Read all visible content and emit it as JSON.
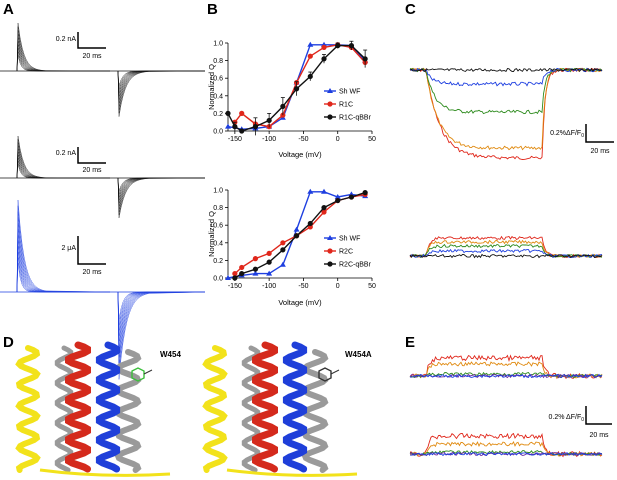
{
  "panels": {
    "a": "A",
    "b": "B",
    "c": "C",
    "d": "D",
    "e": "E"
  },
  "scale_bars": {
    "a1_current": "0.2 nA",
    "a1_time": "20 ms",
    "a2_current": "0.2 nA",
    "a2_time": "20 ms",
    "a3_current": "2 μA",
    "a3_time": "20 ms",
    "c_fluor": "0.2%ΔF/F",
    "c_fluor_sub": "0",
    "c_time": "20 ms",
    "e_fluor": "0.2% ΔF/F",
    "e_fluor_sub": "0",
    "e_time": "20 ms"
  },
  "structures": {
    "left_label": "W454",
    "right_label": "W454A"
  },
  "trace_colors": {
    "black": "#111111",
    "blue": "#1e3fe0",
    "green": "#2e8b1e",
    "orange": "#e08a10",
    "red": "#e0271b",
    "purple": "#6a2a9e",
    "helix_yellow": "#f2e21b",
    "helix_red": "#d42a1c",
    "helix_blue": "#1f3fd9",
    "helix_gray": "#9a9a9a"
  },
  "chart_data": [
    {
      "type": "line",
      "id": "B-top",
      "xlabel": "Voltage (mV)",
      "ylabel": "Normalized Q",
      "xlim": [
        -160,
        50
      ],
      "ylim": [
        0,
        1.0
      ],
      "xticks": [
        "-150",
        "-100",
        "-50",
        "0",
        "50"
      ],
      "xtick_values": [
        -150,
        -100,
        -50,
        0,
        50
      ],
      "yticks": [
        "0.0",
        "0.2",
        "0.4",
        "0.6",
        "0.8",
        "1.0"
      ],
      "ytick_values": [
        0,
        0.2,
        0.4,
        0.6,
        0.8,
        1.0
      ],
      "legend_position": "right",
      "series": [
        {
          "name": "Sh WF",
          "color": "#1e3fe0",
          "marker": "triangle",
          "x": [
            -160,
            -140,
            -120,
            -100,
            -80,
            -60,
            -40,
            -20,
            0,
            20,
            40
          ],
          "y": [
            0.05,
            0.02,
            0.03,
            0.05,
            0.15,
            0.55,
            0.98,
            0.98,
            0.98,
            0.97,
            0.8
          ]
        },
        {
          "name": "R1C",
          "color": "#e0271b",
          "marker": "circle",
          "x": [
            -150,
            -140,
            -120,
            -100,
            -80,
            -60,
            -40,
            -20,
            0,
            20,
            40
          ],
          "y": [
            0.1,
            0.2,
            0.08,
            0.05,
            0.18,
            0.55,
            0.85,
            0.95,
            0.98,
            0.95,
            0.78
          ]
        },
        {
          "name": "R1C-qBBr",
          "color": "#111111",
          "marker": "circle",
          "x": [
            -160,
            -150,
            -140,
            -120,
            -100,
            -80,
            -60,
            -40,
            -20,
            0,
            20,
            40
          ],
          "y": [
            0.2,
            0.05,
            0.0,
            0.05,
            0.12,
            0.28,
            0.48,
            0.62,
            0.82,
            0.97,
            0.97,
            0.82
          ],
          "err": [
            0.0,
            0.05,
            0.0,
            0.1,
            0.08,
            0.1,
            0.08,
            0.05,
            0.05,
            0.03,
            0.05,
            0.1
          ]
        }
      ]
    },
    {
      "type": "line",
      "id": "B-bottom",
      "xlabel": "Voltage (mV)",
      "ylabel": "Normalized Q",
      "xlim": [
        -160,
        50
      ],
      "ylim": [
        0,
        1.0
      ],
      "xticks": [
        "-150",
        "-100",
        "-50",
        "0",
        "50"
      ],
      "xtick_values": [
        -150,
        -100,
        -50,
        0,
        50
      ],
      "yticks": [
        "0.0",
        "0.2",
        "0.4",
        "0.6",
        "0.8",
        "1.0"
      ],
      "ytick_values": [
        0,
        0.2,
        0.4,
        0.6,
        0.8,
        1.0
      ],
      "legend_position": "right",
      "series": [
        {
          "name": "Sh WF",
          "color": "#1e3fe0",
          "marker": "triangle",
          "x": [
            -160,
            -140,
            -120,
            -100,
            -80,
            -60,
            -40,
            -20,
            0,
            20,
            40
          ],
          "y": [
            0.0,
            0.03,
            0.05,
            0.05,
            0.15,
            0.55,
            0.98,
            0.98,
            0.92,
            0.95,
            0.93
          ]
        },
        {
          "name": "R2C",
          "color": "#e0271b",
          "marker": "circle",
          "x": [
            -150,
            -140,
            -120,
            -100,
            -80,
            -60,
            -40,
            -20,
            0,
            20,
            40
          ],
          "y": [
            0.05,
            0.12,
            0.22,
            0.28,
            0.4,
            0.48,
            0.58,
            0.75,
            0.88,
            0.92,
            0.95
          ]
        },
        {
          "name": "R2C-qBBr",
          "color": "#111111",
          "marker": "circle",
          "x": [
            -150,
            -140,
            -120,
            -100,
            -80,
            -60,
            -40,
            -20,
            0,
            20,
            40
          ],
          "y": [
            0.0,
            0.05,
            0.1,
            0.18,
            0.32,
            0.48,
            0.62,
            0.8,
            0.88,
            0.92,
            0.97
          ]
        }
      ]
    }
  ]
}
